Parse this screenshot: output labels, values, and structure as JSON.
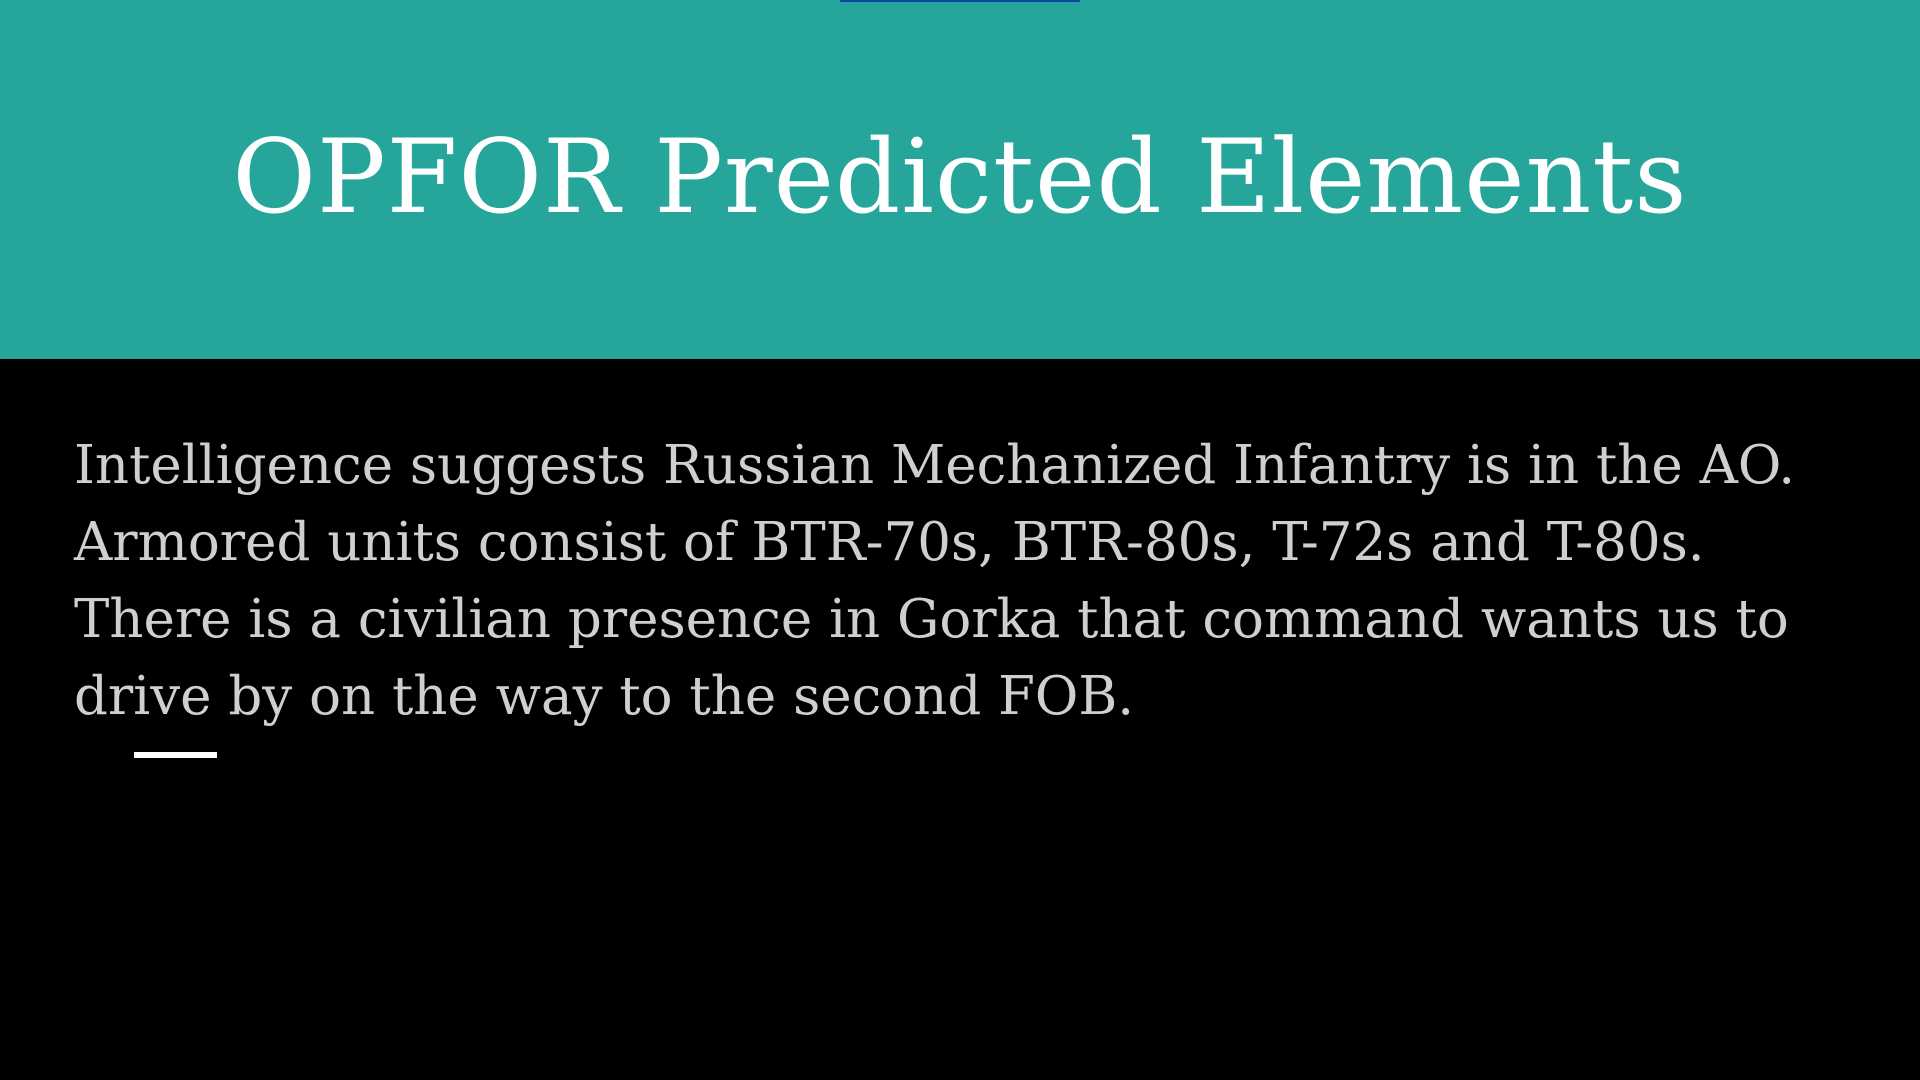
{
  "slide": {
    "title": "OPFOR Predicted Elements",
    "body": "Intelligence suggests Russian Mechanized Infantry is in the AO. Armored units consist of BTR-70s, BTR-80s, T-72s and T-80s. There is a civilian presence in Gorka that command wants us to drive by on the way to the second FOB."
  },
  "colors": {
    "header_band": "#26a69a",
    "background": "#000000",
    "title_text": "#ffffff",
    "body_text": "#cfcfcf",
    "accent_rule": "#ffffff"
  }
}
